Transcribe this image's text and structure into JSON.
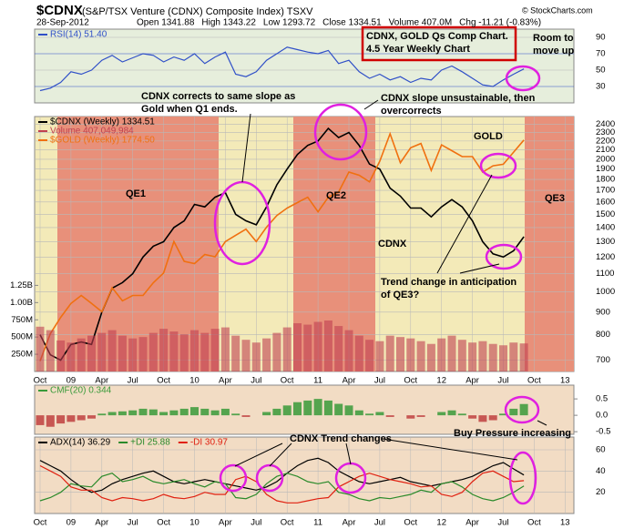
{
  "header": {
    "symbol": "$CDNX",
    "name": "(S&P/TSX Venture (CDNX) Composite Index) TSXV",
    "date": "28-Sep-2012",
    "quote": [
      "Open 1341.88",
      "High 1343.22",
      "Low 1293.72",
      "Close 1334.51",
      "Volume 407.0M",
      "Chg -11.21 (-0.83%)"
    ],
    "brand": "© StockCharts.com"
  },
  "annotations": [
    [
      "CDNX, GOLD Qs Comp Chart.",
      "4.5 Year Weekly Chart"
    ],
    [
      "Room to",
      "move up"
    ],
    [
      "CDNX corrects to same slope as",
      "Gold when Q1 ends."
    ],
    [
      "CDNX slope unsustainable, then",
      "overcorrects"
    ],
    [
      "GOLD"
    ],
    [
      "CDNX"
    ],
    [
      "QE1"
    ],
    [
      "QE2"
    ],
    [
      "QE3"
    ],
    [
      "Trend change in anticipation",
      "of QE3?"
    ],
    [
      "Buy Pressure increasing"
    ],
    [
      "CDNX Trend changes"
    ]
  ],
  "chart_data": [
    {
      "type": "line",
      "ylim": [
        10,
        100
      ],
      "yticks": [
        30,
        50,
        70,
        90
      ],
      "grid": true,
      "series": [
        {
          "name": "RSI(14) 51.40",
          "color": "#3050c8",
          "values": [
            25,
            28,
            35,
            48,
            45,
            50,
            62,
            68,
            60,
            65,
            70,
            68,
            60,
            66,
            62,
            70,
            58,
            66,
            72,
            45,
            42,
            48,
            62,
            70,
            78,
            75,
            72,
            70,
            74,
            58,
            62,
            48,
            40,
            45,
            38,
            42,
            35,
            40,
            38,
            50,
            55,
            48,
            40,
            32,
            30,
            38,
            45,
            51.4,
            null,
            null,
            null,
            null
          ]
        }
      ]
    },
    {
      "type": "line",
      "log": true,
      "ylim": [
        660,
        2500
      ],
      "yticks": [
        700,
        800,
        900,
        1000,
        1100,
        1200,
        1300,
        1400,
        1500,
        1600,
        1700,
        1800,
        1900,
        2000,
        2100,
        2200,
        2300,
        2400
      ],
      "y2lim": [
        700,
        1950
      ],
      "grid": true,
      "categories": [
        "Oct",
        null,
        null,
        "09",
        null,
        null,
        "Apr",
        null,
        null,
        "Jul",
        null,
        null,
        "Oct",
        null,
        null,
        "10",
        null,
        null,
        "Apr",
        null,
        null,
        "Jul",
        null,
        null,
        "Oct",
        null,
        null,
        "11",
        null,
        null,
        "Apr",
        null,
        null,
        "Jul",
        null,
        null,
        "Oct",
        null,
        null,
        "12",
        null,
        null,
        "Apr",
        null,
        null,
        "Jul",
        null,
        null,
        "Oct",
        null,
        null,
        "13"
      ],
      "series": [
        {
          "name": "$CDNX (Weekly) 1334.51",
          "color": "#000000",
          "values": [
            800,
            720,
            700,
            760,
            770,
            760,
            900,
            1020,
            1050,
            1100,
            1200,
            1270,
            1300,
            1400,
            1450,
            1580,
            1560,
            1640,
            1680,
            1500,
            1450,
            1420,
            1560,
            1750,
            1900,
            2050,
            2150,
            2200,
            2350,
            2240,
            2300,
            2150,
            1950,
            1900,
            1720,
            1650,
            1550,
            1550,
            1480,
            1560,
            1620,
            1560,
            1450,
            1300,
            1220,
            1200,
            1240,
            1334.51,
            null,
            null,
            null,
            null
          ]
        },
        {
          "name": "$GOLD (Weekly) 1774.50",
          "color": "#f07010",
          "axis": "y2",
          "values": [
            730,
            815,
            870,
            920,
            950,
            920,
            890,
            980,
            930,
            950,
            950,
            1000,
            1040,
            1180,
            1090,
            1080,
            1120,
            1110,
            1180,
            1210,
            1240,
            1180,
            1250,
            1310,
            1350,
            1380,
            1410,
            1330,
            1410,
            1440,
            1560,
            1540,
            1500,
            1630,
            1820,
            1620,
            1720,
            1750,
            1570,
            1740,
            1700,
            1660,
            1660,
            1560,
            1600,
            1610,
            1690,
            1774.5,
            null,
            null,
            null,
            null
          ]
        }
      ]
    },
    {
      "type": "bar",
      "ylim": [
        0,
        3700000000
      ],
      "color": "#c04050",
      "yticks": [
        {
          "value": 250000000,
          "label": "250M"
        },
        {
          "value": 500000000,
          "label": "500M"
        },
        {
          "value": 750000000,
          "label": "750M"
        },
        {
          "value": 1000000000,
          "label": "1.00B"
        },
        {
          "value": 1250000000,
          "label": "1.25B"
        }
      ],
      "series": [
        {
          "name": "Volume 407,049,984",
          "color": "#c04050",
          "values": [
            650000000,
            600000000,
            450000000,
            420000000,
            480000000,
            520000000,
            560000000,
            600000000,
            520000000,
            480000000,
            500000000,
            560000000,
            620000000,
            580000000,
            540000000,
            600000000,
            560000000,
            620000000,
            640000000,
            520000000,
            460000000,
            420000000,
            480000000,
            560000000,
            640000000,
            700000000,
            680000000,
            720000000,
            740000000,
            660000000,
            600000000,
            520000000,
            460000000,
            440000000,
            520000000,
            500000000,
            480000000,
            440000000,
            400000000,
            480000000,
            520000000,
            460000000,
            420000000,
            440000000,
            400000000,
            380000000,
            420000000,
            407049984,
            null,
            null,
            null,
            null
          ]
        }
      ]
    },
    {
      "type": "bar",
      "ylim": [
        -0.58,
        0.92
      ],
      "yticks": [
        -0.5,
        {
          "value": 0,
          "label": "0.0"
        },
        0.5
      ],
      "positive_color": "#3a9a3a",
      "negative_color": "#c04040",
      "series": [
        {
          "name": "CMF(20) 0.344",
          "color": "#3a9a3a",
          "values": [
            -0.3,
            -0.35,
            -0.25,
            -0.2,
            -0.15,
            -0.1,
            0.05,
            0.1,
            0.12,
            0.15,
            0.2,
            0.18,
            0.1,
            0.15,
            0.2,
            0.25,
            0.2,
            0.15,
            0.2,
            0.05,
            -0.05,
            0.0,
            0.1,
            0.2,
            0.3,
            0.4,
            0.45,
            0.5,
            0.45,
            0.35,
            0.3,
            0.15,
            0.05,
            0.1,
            -0.05,
            0.0,
            -0.1,
            -0.05,
            0.0,
            0.1,
            0.15,
            0.05,
            -0.1,
            -0.2,
            -0.15,
            0.05,
            0.2,
            0.344,
            null,
            null,
            null,
            null
          ]
        }
      ]
    },
    {
      "type": "line",
      "ylim": [
        0,
        72
      ],
      "yticks": [
        20,
        40,
        60
      ],
      "grid": true,
      "categories": [
        "Oct",
        null,
        null,
        "09",
        null,
        null,
        "Apr",
        null,
        null,
        "Jul",
        null,
        null,
        "Oct",
        null,
        null,
        "10",
        null,
        null,
        "Apr",
        null,
        null,
        "Jul",
        null,
        null,
        "Oct",
        null,
        null,
        "11",
        null,
        null,
        "Apr",
        null,
        null,
        "Jul",
        null,
        null,
        "Oct",
        null,
        null,
        "12",
        null,
        null,
        "Apr",
        null,
        null,
        "Jul",
        null,
        null,
        "Oct",
        null,
        null,
        "13"
      ],
      "series": [
        {
          "name": "ADX(14) 36.29",
          "color": "#000000",
          "values": [
            50,
            45,
            40,
            32,
            25,
            20,
            22,
            28,
            32,
            35,
            38,
            40,
            35,
            30,
            28,
            30,
            32,
            30,
            28,
            26,
            24,
            22,
            25,
            30,
            38,
            45,
            50,
            52,
            48,
            40,
            35,
            30,
            28,
            30,
            32,
            34,
            30,
            28,
            26,
            28,
            30,
            32,
            35,
            40,
            45,
            48,
            42,
            36.29,
            null,
            null,
            null,
            null
          ]
        },
        {
          "name": "+DI 25.88",
          "color": "#2a8a2a",
          "values": [
            12,
            15,
            20,
            28,
            26,
            25,
            35,
            38,
            30,
            32,
            35,
            30,
            28,
            30,
            32,
            28,
            25,
            30,
            28,
            15,
            14,
            18,
            28,
            35,
            38,
            35,
            30,
            28,
            30,
            20,
            18,
            14,
            12,
            15,
            14,
            16,
            18,
            22,
            20,
            28,
            30,
            25,
            18,
            14,
            12,
            15,
            20,
            25.88,
            null,
            null,
            null,
            null
          ]
        },
        {
          "name": "-DI 30.97",
          "color": "#e02010",
          "values": [
            45,
            40,
            35,
            25,
            22,
            22,
            15,
            12,
            15,
            14,
            12,
            14,
            18,
            15,
            14,
            16,
            20,
            18,
            18,
            32,
            35,
            30,
            18,
            12,
            10,
            10,
            12,
            14,
            15,
            25,
            30,
            35,
            38,
            35,
            32,
            30,
            28,
            25,
            26,
            18,
            16,
            20,
            30,
            38,
            40,
            35,
            30,
            30.97,
            null,
            null,
            null,
            null
          ]
        }
      ]
    }
  ]
}
